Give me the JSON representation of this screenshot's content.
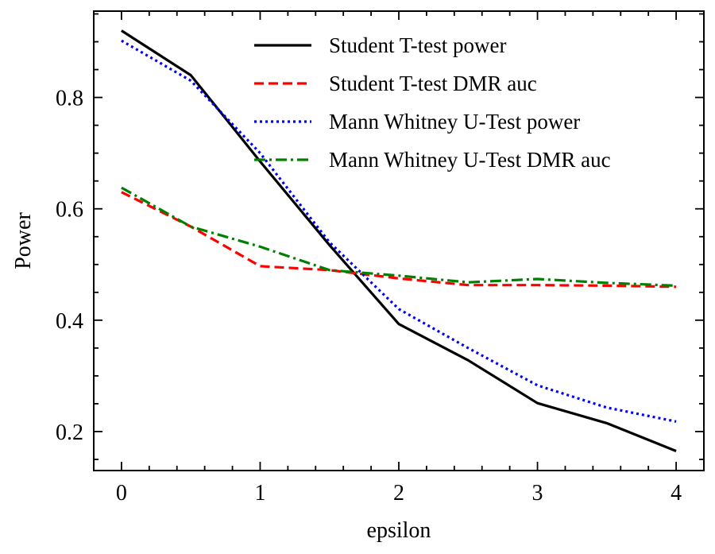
{
  "chart_data": {
    "type": "line",
    "title": "",
    "xlabel": "epsilon",
    "ylabel": "Power",
    "xlim": [
      -0.2,
      4.2
    ],
    "ylim": [
      0.13,
      0.955
    ],
    "xticks": [
      0,
      1,
      2,
      3,
      4
    ],
    "xtick_labels": [
      "0",
      "1",
      "2",
      "3",
      "4"
    ],
    "yticks": [
      0.2,
      0.4,
      0.6,
      0.8
    ],
    "ytick_labels": [
      "0.2",
      "0.4",
      "0.6",
      "0.8"
    ],
    "grid": false,
    "legend_position": "top-right",
    "x": [
      0,
      0.5,
      1,
      1.5,
      2,
      2.5,
      3,
      3.5,
      4
    ],
    "series": [
      {
        "name": "Student T-test power",
        "color": "#000000",
        "dash": "solid",
        "values": [
          0.92,
          0.84,
          0.685,
          0.535,
          0.393,
          0.328,
          0.251,
          0.215,
          0.165
        ]
      },
      {
        "name": "Student T-test DMR auc",
        "color": "#ff0000",
        "dash": "dashed",
        "values": [
          0.63,
          0.568,
          0.497,
          0.49,
          0.475,
          0.463,
          0.463,
          0.462,
          0.46
        ]
      },
      {
        "name": "Mann Whitney U-Test power",
        "color": "#0000ff",
        "dash": "dotted",
        "values": [
          0.902,
          0.83,
          0.7,
          0.54,
          0.42,
          0.35,
          0.283,
          0.243,
          0.218
        ]
      },
      {
        "name": "Mann Whitney U-Test DMR auc",
        "color": "#008000",
        "dash": "dashdot",
        "values": [
          0.638,
          0.568,
          0.532,
          0.49,
          0.48,
          0.468,
          0.474,
          0.467,
          0.462
        ]
      }
    ]
  }
}
